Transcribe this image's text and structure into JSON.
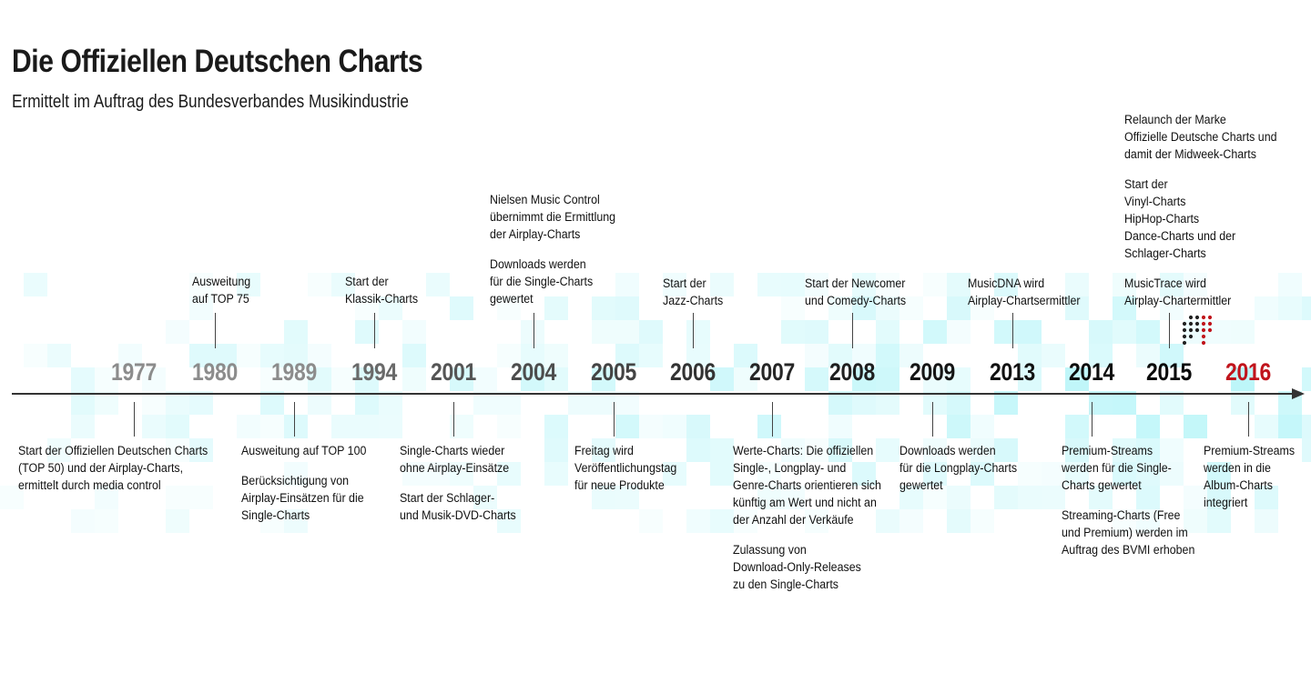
{
  "title": "Die Offiziellen Deutschen Charts",
  "subtitle": "Ermittelt im Auftrag des Bundesverbandes Musikindustrie",
  "colors": {
    "axis": "#333333",
    "mosaic": "#5ee8f0",
    "highlight_year": "#c0141c",
    "year_past": [
      "#8c8c8c",
      "#8c8c8c",
      "#8c8c8c",
      "#6a6a6a",
      "#555555",
      "#4d4d4d",
      "#444444",
      "#333333",
      "#262626",
      "#1e1e1e",
      "#151515",
      "#111111",
      "#0d0d0d",
      "#0a0a0a",
      "#0a0a0a"
    ]
  },
  "timeline": {
    "years": [
      "1977",
      "1980",
      "1989",
      "1994",
      "2001",
      "2004",
      "2005",
      "2006",
      "2007",
      "2008",
      "2009",
      "2013",
      "2014",
      "2015",
      "2016"
    ],
    "above": [
      {
        "year": "1980",
        "paragraphs": [
          "Ausweitung\nauf TOP 75"
        ]
      },
      {
        "year": "1994",
        "paragraphs": [
          "Start der\nKlassik-Charts"
        ]
      },
      {
        "year": "2004",
        "paragraphs": [
          "Nielsen Music Control\nübernimmt die Ermittlung\nder Airplay-Charts",
          "Downloads werden\nfür die Single-Charts\ngewertet"
        ]
      },
      {
        "year": "2006",
        "paragraphs": [
          "Start  der\nJazz-Charts"
        ]
      },
      {
        "year": "2008",
        "paragraphs": [
          "Start der Newcomer\nund Comedy-Charts"
        ]
      },
      {
        "year": "2013",
        "paragraphs": [
          "MusicDNA wird\nAirplay-Chartsermittler"
        ]
      },
      {
        "year": "2015",
        "paragraphs": [
          "Relaunch der Marke\nOffizielle Deutsche Charts und\ndamit der Midweek-Charts",
          "Start der\nVinyl-Charts\nHipHop-Charts\nDance-Charts und der\nSchlager-Charts",
          "MusicTrace wird\nAirplay-Chartermittler"
        ]
      }
    ],
    "below": [
      {
        "year": "1977",
        "paragraphs": [
          "Start der Offiziellen Deutschen Charts\n(TOP 50) und der Airplay-Charts,\nermittelt durch media control"
        ]
      },
      {
        "year": "1989",
        "paragraphs": [
          "Ausweitung auf TOP 100",
          "Berücksichtigung von\nAirplay-Einsätzen für die\nSingle-Charts"
        ]
      },
      {
        "year": "2001",
        "paragraphs": [
          "Single-Charts wieder\nohne Airplay-Einsätze",
          "Start der Schlager-\nund Musik-DVD-Charts"
        ]
      },
      {
        "year": "2005",
        "paragraphs": [
          "Freitag wird\nVeröffentlichungstag\nfür neue Produkte"
        ]
      },
      {
        "year": "2007",
        "paragraphs": [
          "Werte-Charts: Die offiziellen\nSingle-, Longplay- und\nGenre-Charts orientieren sich\nkünftig am Wert und nicht an\nder Anzahl der Verkäufe",
          "Zulassung von\nDownload-Only-Releases\nzu den Single-Charts"
        ]
      },
      {
        "year": "2009",
        "paragraphs": [
          "Downloads werden\nfür die Longplay-Charts\ngewertet"
        ]
      },
      {
        "year": "2014",
        "paragraphs": [
          "Premium-Streams\nwerden für die Single-\nCharts gewertet",
          "Streaming-Charts (Free\nund Premium) werden im\nAuftrag des BVMI erhoben"
        ]
      },
      {
        "year": "2016",
        "paragraphs": [
          "Premium-Streams\nwerden in die\nAlbum-Charts\nintegriert"
        ]
      }
    ]
  }
}
